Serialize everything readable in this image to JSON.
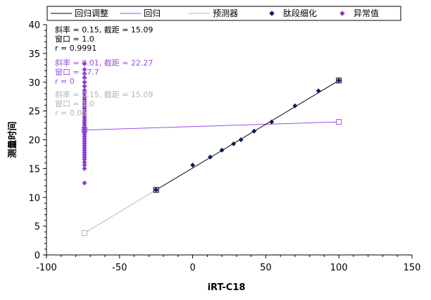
{
  "chart_data": {
    "type": "scatter",
    "xlabel": "iRT-C18",
    "ylabel": "测量时间",
    "xlim": [
      -100,
      150
    ],
    "ylim": [
      0,
      40
    ],
    "x_ticks": [
      "-100",
      "-50",
      "0",
      "50",
      "100",
      "150"
    ],
    "y_ticks": [
      "0",
      "5",
      "10",
      "15",
      "20",
      "25",
      "30",
      "35",
      "40"
    ],
    "grid": false,
    "legend_position": "top",
    "colors": {
      "fit": "#000000",
      "regression": "#9B4FE0",
      "predictor": "#B4B4B4",
      "peptide": "#0B1A66",
      "outlier": "#8A3FD0"
    },
    "legend": [
      {
        "label": "回归调整",
        "kind": "line",
        "color": "#000000"
      },
      {
        "label": "回归",
        "kind": "line",
        "color": "#9B4FE0"
      },
      {
        "label": "预测器",
        "kind": "line",
        "color": "#B4B4B4"
      },
      {
        "label": "肽段细化",
        "kind": "diamond",
        "color": "#0B1A66"
      },
      {
        "label": "异常值",
        "kind": "diamond",
        "color": "#8A3FD0"
      }
    ],
    "annotations": [
      {
        "color": "#000000",
        "lines": [
          "斜率 = 0.15, 截距 = 15.09",
          "窗口 = 1.0",
          "r = 0.9991"
        ]
      },
      {
        "color": "#9B4FE0",
        "lines": [
          "斜率 = 0.01, 截距 = 22.27",
          "窗口 = 17.7",
          "r = 0"
        ]
      },
      {
        "color": "#B4B4B4",
        "lines": [
          "斜率 = 0.15, 截距 = 15.09",
          "窗口 = 1.0",
          "r = 0.05"
        ]
      }
    ],
    "lines": [
      {
        "name": "回归调整",
        "color": "#000000",
        "points": [
          [
            -25,
            11.3
          ],
          [
            100,
            30.3
          ]
        ],
        "end_markers": true
      },
      {
        "name": "回归",
        "color": "#9B4FE0",
        "points": [
          [
            -74,
            21.7
          ],
          [
            100,
            23.1
          ]
        ],
        "end_markers": true
      },
      {
        "name": "预测器",
        "color": "#B4B4B4",
        "points": [
          [
            -74,
            3.8
          ],
          [
            -25,
            11.3
          ]
        ],
        "end_markers": true
      }
    ],
    "series": [
      {
        "name": "肽段细化",
        "color": "#0B1A66",
        "points": [
          [
            -25,
            11.3
          ],
          [
            0,
            15.6
          ],
          [
            12,
            17.0
          ],
          [
            20,
            18.2
          ],
          [
            28,
            19.3
          ],
          [
            33,
            20.0
          ],
          [
            42,
            21.5
          ],
          [
            54,
            23.1
          ],
          [
            70,
            25.9
          ],
          [
            86,
            28.5
          ],
          [
            100,
            30.3
          ]
        ]
      },
      {
        "name": "异常值",
        "color": "#8A3FD0",
        "points": [
          [
            -74,
            12.5
          ],
          [
            -74,
            15.0
          ],
          [
            -74,
            15.6
          ],
          [
            -74,
            16.1
          ],
          [
            -74,
            16.6
          ],
          [
            -74,
            17.0
          ],
          [
            -74,
            17.4
          ],
          [
            -74,
            17.8
          ],
          [
            -74,
            18.2
          ],
          [
            -74,
            18.6
          ],
          [
            -74,
            19.0
          ],
          [
            -74,
            19.4
          ],
          [
            -74,
            19.8
          ],
          [
            -74,
            20.2
          ],
          [
            -74,
            20.6
          ],
          [
            -74,
            21.0
          ],
          [
            -74,
            21.4
          ],
          [
            -74,
            21.8
          ],
          [
            -74,
            22.2
          ],
          [
            -74,
            22.6
          ],
          [
            -74,
            23.0
          ],
          [
            -74,
            23.4
          ],
          [
            -74,
            23.8
          ],
          [
            -74,
            24.2
          ],
          [
            -74,
            24.6
          ],
          [
            -74,
            25.0
          ],
          [
            -74,
            25.4
          ],
          [
            -74,
            25.8
          ],
          [
            -74,
            26.2
          ],
          [
            -74,
            26.6
          ],
          [
            -74,
            27.0
          ],
          [
            -74,
            27.4
          ],
          [
            -74,
            27.8
          ],
          [
            -74,
            28.2
          ],
          [
            -74,
            28.6
          ],
          [
            -74,
            29.3
          ],
          [
            -74,
            30.0
          ],
          [
            -74,
            30.8
          ],
          [
            -74,
            31.5
          ],
          [
            -74,
            32.2
          ],
          [
            -74,
            33.2
          ]
        ]
      }
    ]
  }
}
